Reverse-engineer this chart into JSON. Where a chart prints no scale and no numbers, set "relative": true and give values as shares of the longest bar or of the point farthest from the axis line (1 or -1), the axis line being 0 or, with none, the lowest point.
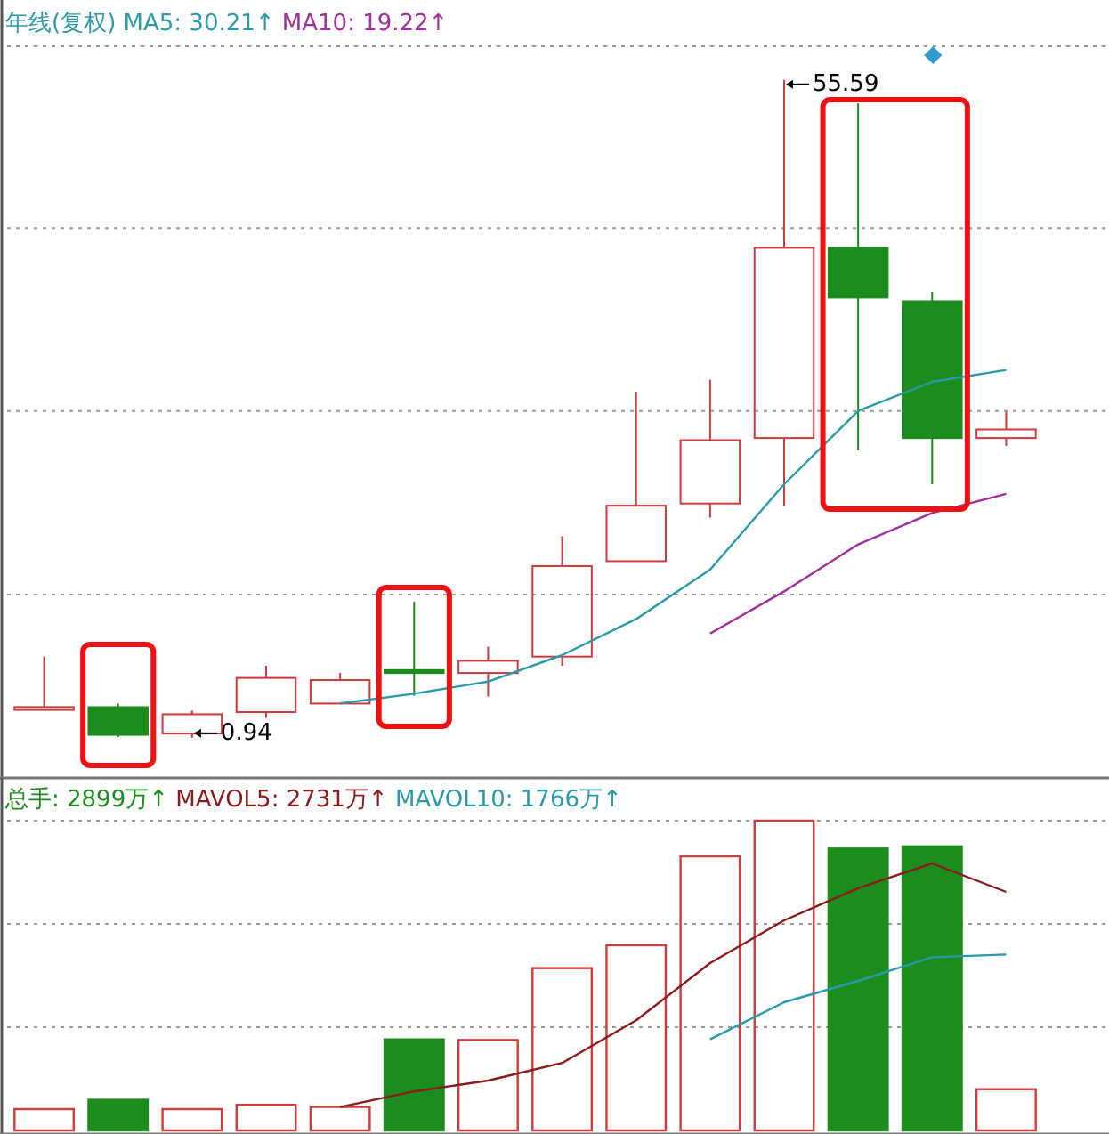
{
  "chart_data": [
    {
      "type": "candlestick",
      "title": "年线(复权)",
      "categories": [
        null,
        null,
        null,
        null,
        null,
        null,
        null,
        null,
        null,
        null,
        null,
        null,
        null,
        null
      ],
      "ohlc": [
        [
          3.25,
          7.68,
          3.25,
          3.49
        ],
        [
          3.48,
          3.78,
          1.0,
          1.18
        ],
        [
          1.29,
          3.19,
          0.94,
          2.89
        ],
        [
          3.07,
          6.91,
          2.6,
          5.91
        ],
        [
          3.78,
          6.32,
          3.78,
          5.73
        ],
        [
          6.56,
          12.24,
          4.43,
          6.32
        ],
        [
          6.32,
          8.51,
          4.37,
          7.33
        ],
        [
          7.68,
          17.68,
          6.91,
          15.2
        ],
        [
          15.61,
          29.69,
          15.61,
          20.22
        ],
        [
          20.4,
          30.69,
          19.22,
          25.66
        ],
        [
          25.84,
          55.59,
          20.22,
          41.64
        ],
        [
          41.64,
          53.64,
          24.84,
          37.5
        ],
        [
          37.2,
          37.97,
          22.0,
          25.84
        ],
        [
          25.84,
          28.03,
          25.19,
          26.55
        ]
      ],
      "colors": [
        "#d03a3a",
        "#1c8c1c",
        "#d03a3a",
        "#d03a3a",
        "#d03a3a",
        "#1c8c1c",
        "#d03a3a",
        "#d03a3a",
        "#d03a3a",
        "#d03a3a",
        "#d03a3a",
        "#1c8c1c",
        "#1c8c1c",
        "#d03a3a"
      ],
      "series": [
        {
          "type": "line",
          "name": "MA5: 30.21↑",
          "color": "#2a9aa8",
          "values": [
            null,
            null,
            null,
            null,
            3.8,
            4.6,
            5.6,
            7.8,
            10.8,
            14.9,
            22.0,
            28.1,
            30.5,
            31.5
          ]
        },
        {
          "type": "line",
          "name": "MA10: 19.22↑",
          "color": "#a0309c",
          "values": [
            null,
            null,
            null,
            null,
            null,
            null,
            null,
            null,
            null,
            9.6,
            13.1,
            17.0,
            19.6,
            21.2
          ]
        }
      ],
      "ylim": [
        -2.4,
        62.23
      ],
      "yticks": [
        {
          "value": 12.83,
          "label": null
        },
        {
          "value": 28.09,
          "label": null
        },
        {
          "value": 43.29,
          "label": null
        },
        {
          "value": 58.38,
          "label": null
        }
      ],
      "grid": "y",
      "annotations": [
        "55.59",
        "0.94"
      ]
    },
    {
      "type": "bar",
      "relative": true,
      "categories": [
        null,
        null,
        null,
        null,
        null,
        null,
        null,
        null,
        null,
        null,
        null,
        null,
        null,
        null
      ],
      "series": [
        {
          "type": "bar",
          "name": "总手: 2899万↑",
          "color": "#1c8c1c",
          "colors": [
            "#d03a3a",
            "#1c8c1c",
            "#d03a3a",
            "#d03a3a",
            "#d03a3a",
            "#1c8c1c",
            "#d03a3a",
            "#d03a3a",
            "#d03a3a",
            "#d03a3a",
            "#d03a3a",
            "#1c8c1c",
            "#1c8c1c",
            "#d03a3a"
          ],
          "values": [
            0.069,
            0.099,
            0.069,
            0.083,
            0.076,
            0.294,
            0.292,
            0.524,
            0.598,
            0.885,
            1,
            0.91,
            0.917,
            0.133
          ]
        },
        {
          "type": "line",
          "name": "MAVOL5: 2731万↑",
          "color": "#8b1a1a",
          "values": [
            null,
            null,
            null,
            null,
            0.076,
            0.126,
            0.161,
            0.218,
            0.356,
            0.54,
            0.678,
            0.782,
            0.862,
            0.77
          ]
        },
        {
          "type": "line",
          "name": "MAVOL10: 1766万↑",
          "color": "#2a9aa8",
          "values": [
            null,
            null,
            null,
            null,
            null,
            null,
            null,
            null,
            null,
            0.294,
            0.414,
            0.483,
            0.559,
            0.568
          ]
        }
      ],
      "ref_lines": [
        {
          "axis": "y",
          "value": 0.333,
          "color": "#999999",
          "line_style": "dotted"
        },
        {
          "axis": "y",
          "value": 0.667,
          "color": "#999999",
          "line_style": "dotted"
        },
        {
          "axis": "y",
          "value": 1,
          "color": "#999999",
          "line_style": "dotted"
        }
      ]
    }
  ]
}
